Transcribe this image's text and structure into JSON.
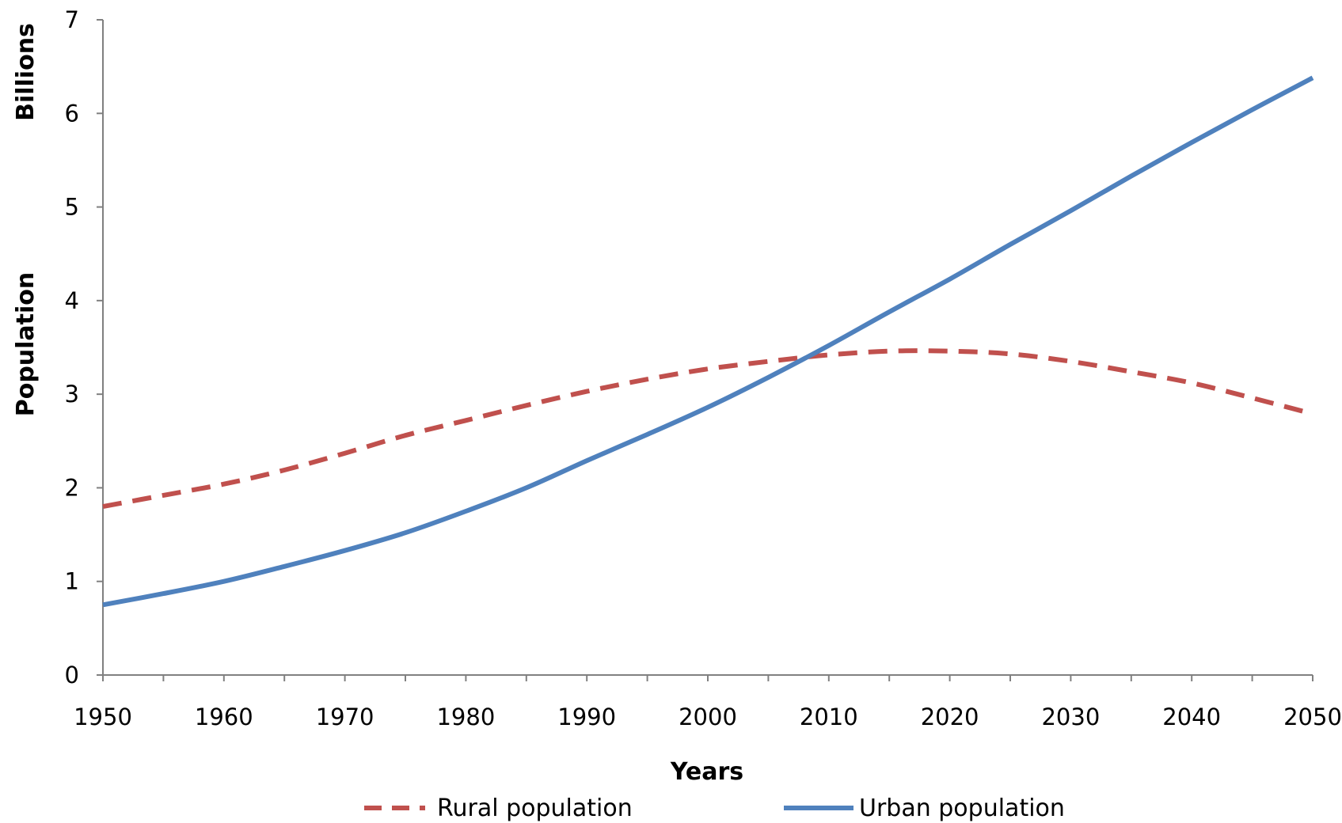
{
  "chart_data": {
    "type": "line",
    "title": "",
    "xlabel": "Years",
    "ylabel": "Population",
    "yunit": "Billions",
    "xlim": [
      1950,
      2050
    ],
    "ylim": [
      0,
      7
    ],
    "x_ticks": [
      1950,
      1960,
      1970,
      1980,
      1990,
      2000,
      2010,
      2020,
      2030,
      2040,
      2050
    ],
    "x_minor_step": 5,
    "y_ticks": [
      0,
      1,
      2,
      3,
      4,
      5,
      6,
      7
    ],
    "grid": false,
    "legend_position": "bottom",
    "series": [
      {
        "name": "Rural population",
        "color": "#c0504d",
        "style": "dashed",
        "x": [
          1950,
          1955,
          1960,
          1965,
          1970,
          1975,
          1980,
          1985,
          1990,
          1995,
          2000,
          2005,
          2010,
          2015,
          2020,
          2025,
          2030,
          2035,
          2040,
          2045,
          2050
        ],
        "values": [
          1.8,
          1.92,
          2.04,
          2.19,
          2.37,
          2.56,
          2.72,
          2.88,
          3.03,
          3.16,
          3.27,
          3.35,
          3.42,
          3.46,
          3.46,
          3.43,
          3.35,
          3.24,
          3.12,
          2.96,
          2.79
        ]
      },
      {
        "name": "Urban population",
        "color": "#4f81bd",
        "style": "solid",
        "x": [
          1950,
          1955,
          1960,
          1965,
          1970,
          1975,
          1980,
          1985,
          1990,
          1995,
          2000,
          2005,
          2010,
          2015,
          2020,
          2025,
          2030,
          2035,
          2040,
          2045,
          2050
        ],
        "values": [
          0.75,
          0.87,
          1.0,
          1.16,
          1.33,
          1.52,
          1.75,
          2.0,
          2.29,
          2.57,
          2.86,
          3.18,
          3.52,
          3.88,
          4.23,
          4.6,
          4.96,
          5.33,
          5.69,
          6.04,
          6.38
        ]
      }
    ]
  }
}
